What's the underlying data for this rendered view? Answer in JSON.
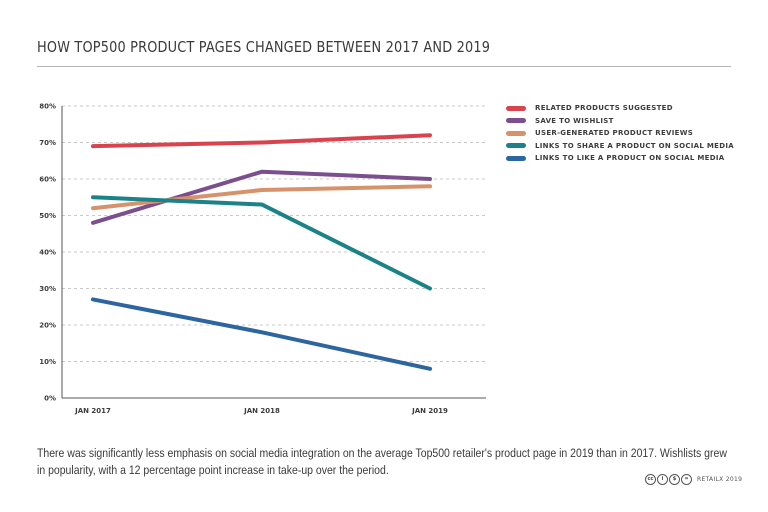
{
  "page": {
    "title": "HOW TOP500 PRODUCT PAGES CHANGED BETWEEN 2017 AND 2019",
    "caption": "There was significantly less emphasis on social media integration on the average Top500 retailer's product page in 2019 than in 2017. Wishlists grew in popularity, with a 12 percentage point increase in take-up over the period.",
    "footer": {
      "text": "RETAILX 2019",
      "icons": [
        {
          "name": "cc-icon",
          "glyph": "cc"
        },
        {
          "name": "by-icon",
          "glyph": "i"
        },
        {
          "name": "nc-icon",
          "glyph": "$"
        },
        {
          "name": "nd-icon",
          "glyph": "="
        }
      ]
    }
  },
  "chart_data": {
    "type": "line",
    "categories": [
      "JAN 2017",
      "JAN 2018",
      "JAN 2019"
    ],
    "ylim": [
      0,
      80
    ],
    "yticks": [
      0,
      10,
      20,
      30,
      40,
      50,
      60,
      70,
      80
    ],
    "ytick_labels": [
      "0%",
      "10%",
      "20%",
      "30%",
      "40%",
      "50%",
      "60%",
      "70%",
      "80%"
    ],
    "grid": true,
    "legend_position": "right",
    "series": [
      {
        "name": "RELATED PRODUCTS SUGGESTED",
        "color": "#d9434e",
        "values": [
          69,
          70,
          72
        ]
      },
      {
        "name": "SAVE TO WISHLIST",
        "color": "#7b4f8e",
        "values": [
          48,
          62,
          60
        ]
      },
      {
        "name": "USER-GENERATED PRODUCT REVIEWS",
        "color": "#d6926a",
        "values": [
          52,
          57,
          58
        ]
      },
      {
        "name": "LINKS TO SHARE A PRODUCT ON SOCIAL MEDIA",
        "color": "#1b8289",
        "values": [
          55,
          53,
          30
        ]
      },
      {
        "name": "LINKS TO LIKE A PRODUCT ON SOCIAL MEDIA",
        "color": "#2c65a0",
        "values": [
          27,
          18,
          8
        ]
      }
    ]
  }
}
